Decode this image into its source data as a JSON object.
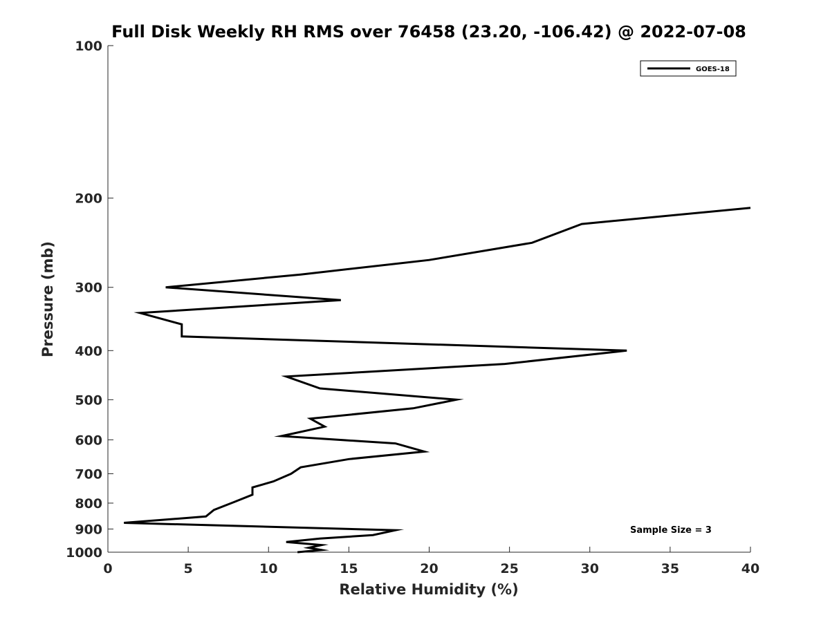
{
  "chart_data": {
    "type": "line",
    "title": "Full Disk Weekly RH RMS over 76458 (23.20, -106.42) @ 2022-07-08",
    "xlabel": "Relative Humidity (%)",
    "ylabel": "Pressure (mb)",
    "xlim": [
      0,
      40
    ],
    "ylim": [
      100,
      1000
    ],
    "y_scale": "log",
    "y_reversed": true,
    "grid": false,
    "xticks": [
      0,
      5,
      10,
      15,
      20,
      25,
      30,
      35,
      40
    ],
    "yticks": [
      100,
      200,
      300,
      400,
      500,
      600,
      700,
      800,
      900,
      1000
    ],
    "legend_position": "top-right",
    "series": [
      {
        "name": "GOES-18",
        "color": "#000000",
        "points": [
          {
            "x": 40.0,
            "y": 209
          },
          {
            "x": 29.5,
            "y": 225
          },
          {
            "x": 26.4,
            "y": 245
          },
          {
            "x": 20.0,
            "y": 265
          },
          {
            "x": 12.0,
            "y": 283
          },
          {
            "x": 3.6,
            "y": 300
          },
          {
            "x": 14.5,
            "y": 318
          },
          {
            "x": 2.0,
            "y": 337
          },
          {
            "x": 4.6,
            "y": 355
          },
          {
            "x": 4.6,
            "y": 375
          },
          {
            "x": 32.3,
            "y": 400
          },
          {
            "x": 24.7,
            "y": 425
          },
          {
            "x": 11.1,
            "y": 450
          },
          {
            "x": 13.2,
            "y": 475
          },
          {
            "x": 21.7,
            "y": 500
          },
          {
            "x": 19.0,
            "y": 520
          },
          {
            "x": 12.6,
            "y": 545
          },
          {
            "x": 13.5,
            "y": 565
          },
          {
            "x": 10.8,
            "y": 590
          },
          {
            "x": 17.9,
            "y": 610
          },
          {
            "x": 19.7,
            "y": 633
          },
          {
            "x": 15.0,
            "y": 655
          },
          {
            "x": 12.0,
            "y": 680
          },
          {
            "x": 11.4,
            "y": 700
          },
          {
            "x": 10.3,
            "y": 725
          },
          {
            "x": 9.0,
            "y": 745
          },
          {
            "x": 9.0,
            "y": 770
          },
          {
            "x": 7.9,
            "y": 795
          },
          {
            "x": 6.6,
            "y": 825
          },
          {
            "x": 6.1,
            "y": 850
          },
          {
            "x": 1.0,
            "y": 875
          },
          {
            "x": 17.9,
            "y": 905
          },
          {
            "x": 16.5,
            "y": 925
          },
          {
            "x": 13.2,
            "y": 940
          },
          {
            "x": 11.1,
            "y": 955
          },
          {
            "x": 13.3,
            "y": 968
          },
          {
            "x": 12.5,
            "y": 980
          },
          {
            "x": 13.3,
            "y": 990
          },
          {
            "x": 11.8,
            "y": 1000
          }
        ]
      }
    ],
    "annotations": [
      {
        "text": "Sample Size = 3",
        "x": 35,
        "y": 925
      }
    ]
  }
}
